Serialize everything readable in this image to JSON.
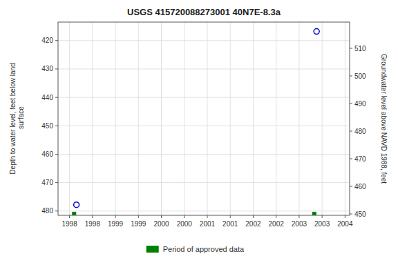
{
  "chart_data": {
    "type": "scatter",
    "title": "USGS 415720088273001 40N7E-8.3a",
    "ylabel": "Depth to water level, feet below land\n surface",
    "y2label": "Groundwater level above NAVD 1988, feet",
    "xlim": [
      1997.75,
      2004.1
    ],
    "xticks": [
      1998,
      {
        "value": 1998.5,
        "label": "1998"
      },
      1999,
      {
        "value": 1999.5,
        "label": "1999"
      },
      2000,
      {
        "value": 2000.5,
        "label": "2000"
      },
      2001,
      {
        "value": 2001.5,
        "label": "2001"
      },
      2002,
      {
        "value": 2002.5,
        "label": "2002"
      },
      2003,
      {
        "value": 2003.5,
        "label": "2003"
      },
      2004
    ],
    "ylim": [
      481.5,
      413.5
    ],
    "yticks": [
      420,
      430,
      440,
      450,
      460,
      470,
      480
    ],
    "y2lim": [
      449.5,
      519.5
    ],
    "y2ticks": [
      510,
      500,
      490,
      480,
      470,
      460,
      450
    ],
    "grid": true,
    "legend": "bottom",
    "series": [
      {
        "x": [
          1998.15,
          2003.38
        ],
        "values": [
          477.8,
          416.8
        ],
        "color": "#0000cc",
        "marker": "circle"
      },
      {
        "name": "Period of approved data",
        "x": [
          1998.1,
          2003.33
        ],
        "values": [
          481.0,
          481.0
        ],
        "color": "#008000",
        "marker": "square"
      }
    ]
  }
}
